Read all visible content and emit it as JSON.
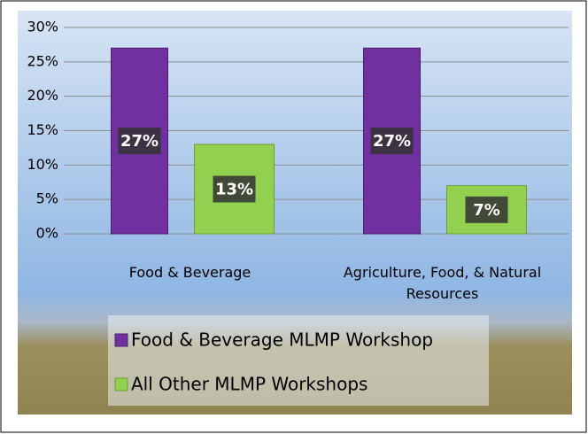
{
  "chart_data": {
    "type": "bar",
    "categories": [
      "Food & Beverage",
      "Agriculture, Food, & Natural Resources"
    ],
    "series": [
      {
        "name": "Food & Beverage MLMP Workshop",
        "color": "#7030a0",
        "values": [
          27,
          27
        ],
        "value_labels": [
          "27%",
          "27%"
        ]
      },
      {
        "name": "All Other MLMP Workshops",
        "color": "#92d050",
        "values": [
          13,
          7
        ],
        "value_labels": [
          "13%",
          "7%"
        ]
      }
    ],
    "ylim": [
      0,
      30
    ],
    "yticks": [
      {
        "value": 0,
        "label": "0%"
      },
      {
        "value": 5,
        "label": "5%"
      },
      {
        "value": 10,
        "label": "10%"
      },
      {
        "value": 15,
        "label": "15%"
      },
      {
        "value": 20,
        "label": "20%"
      },
      {
        "value": 25,
        "label": "25%"
      },
      {
        "value": 30,
        "label": "30%"
      }
    ],
    "grid": true,
    "legend": "bottom"
  }
}
